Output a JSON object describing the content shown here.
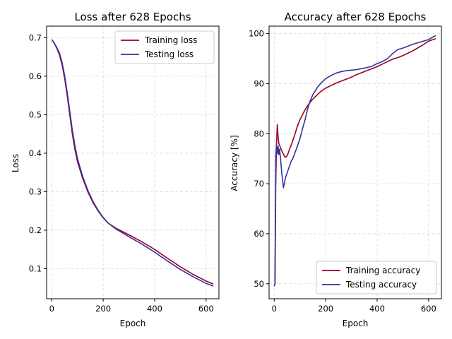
{
  "chart_data": [
    {
      "type": "line",
      "title": "Loss after 628 Epochs",
      "xlabel": "Epoch",
      "ylabel": "Loss",
      "xlim": [
        -20,
        650
      ],
      "ylim": [
        0.022,
        0.73
      ],
      "xticks": [
        0,
        200,
        400,
        600
      ],
      "yticks": [
        0.1,
        0.2,
        0.3,
        0.4,
        0.5,
        0.6,
        0.7
      ],
      "grid": true,
      "legend": "top-right",
      "series": [
        {
          "name": "Training loss",
          "color": "#990026",
          "x": [
            0,
            10,
            20,
            30,
            40,
            50,
            60,
            70,
            80,
            90,
            100,
            120,
            140,
            160,
            180,
            200,
            220,
            250,
            300,
            350,
            400,
            450,
            500,
            550,
            600,
            628
          ],
          "y": [
            0.695,
            0.685,
            0.672,
            0.655,
            0.63,
            0.595,
            0.55,
            0.5,
            0.45,
            0.41,
            0.378,
            0.335,
            0.3,
            0.272,
            0.25,
            0.232,
            0.218,
            0.205,
            0.188,
            0.17,
            0.15,
            0.127,
            0.105,
            0.085,
            0.068,
            0.06
          ]
        },
        {
          "name": "Testing loss",
          "color": "#333399",
          "x": [
            0,
            10,
            20,
            30,
            40,
            50,
            60,
            70,
            80,
            90,
            100,
            120,
            140,
            160,
            180,
            200,
            220,
            250,
            300,
            350,
            400,
            450,
            500,
            550,
            600,
            628
          ],
          "y": [
            0.695,
            0.686,
            0.674,
            0.66,
            0.636,
            0.602,
            0.558,
            0.51,
            0.46,
            0.42,
            0.386,
            0.34,
            0.304,
            0.275,
            0.252,
            0.233,
            0.218,
            0.203,
            0.183,
            0.164,
            0.143,
            0.12,
            0.098,
            0.079,
            0.062,
            0.055
          ]
        }
      ]
    },
    {
      "type": "line",
      "title": "Accuracy after 628 Epochs",
      "xlabel": "Epoch",
      "ylabel": "Accuracy [%]",
      "xlim": [
        -20,
        650
      ],
      "ylim": [
        47,
        101.5
      ],
      "xticks": [
        0,
        200,
        400,
        600
      ],
      "yticks": [
        50,
        60,
        70,
        80,
        90,
        100
      ],
      "grid": true,
      "legend": "bottom-right",
      "series": [
        {
          "name": "Training accuracy",
          "color": "#990026",
          "x": [
            0,
            3,
            6,
            9,
            12,
            15,
            18,
            22,
            26,
            30,
            35,
            40,
            45,
            50,
            55,
            60,
            65,
            70,
            80,
            90,
            100,
            110,
            120,
            130,
            140,
            150,
            160,
            170,
            180,
            200,
            220,
            240,
            260,
            280,
            300,
            320,
            340,
            360,
            380,
            400,
            420,
            440,
            460,
            480,
            500,
            520,
            540,
            560,
            580,
            600,
            628
          ],
          "y": [
            49.5,
            50,
            70,
            78,
            81.8,
            79.5,
            78,
            77.5,
            77,
            76.5,
            76,
            75.4,
            75.3,
            75.6,
            76.2,
            77,
            77.6,
            78.3,
            79.8,
            81.5,
            82.8,
            83.8,
            84.8,
            85.6,
            86.3,
            86.9,
            87.4,
            87.9,
            88.4,
            89.1,
            89.6,
            90.1,
            90.5,
            90.9,
            91.3,
            91.8,
            92.2,
            92.6,
            93,
            93.4,
            93.9,
            94.4,
            94.9,
            95.2,
            95.6,
            96.1,
            96.6,
            97.2,
            97.8,
            98.5,
            99
          ]
        },
        {
          "name": "Testing accuracy",
          "color": "#333399",
          "x": [
            0,
            3,
            6,
            9,
            12,
            15,
            18,
            21,
            24,
            27,
            30,
            33,
            36,
            39,
            42,
            46,
            50,
            55,
            60,
            66,
            72,
            78,
            85,
            92,
            100,
            110,
            120,
            130,
            140,
            150,
            160,
            170,
            180,
            190,
            200,
            220,
            240,
            260,
            280,
            300,
            320,
            340,
            360,
            380,
            400,
            420,
            440,
            460,
            480,
            500,
            520,
            540,
            560,
            580,
            600,
            610,
            620,
            628
          ],
          "y": [
            49.5,
            50,
            75.5,
            78,
            76,
            77.5,
            75.8,
            76.9,
            75.3,
            73.5,
            71.8,
            70.5,
            69.2,
            70,
            70.8,
            71.6,
            72.1,
            72.9,
            73.6,
            74.5,
            75,
            75.8,
            76.8,
            77.8,
            79,
            81,
            82.8,
            85,
            86.6,
            87.8,
            88.6,
            89.4,
            90,
            90.5,
            91,
            91.6,
            92.1,
            92.4,
            92.6,
            92.7,
            92.8,
            93,
            93.2,
            93.5,
            94,
            94.4,
            95,
            96,
            96.8,
            97.1,
            97.5,
            97.9,
            98.2,
            98.5,
            98.8,
            99.1,
            99.4,
            99.6
          ]
        }
      ]
    }
  ]
}
